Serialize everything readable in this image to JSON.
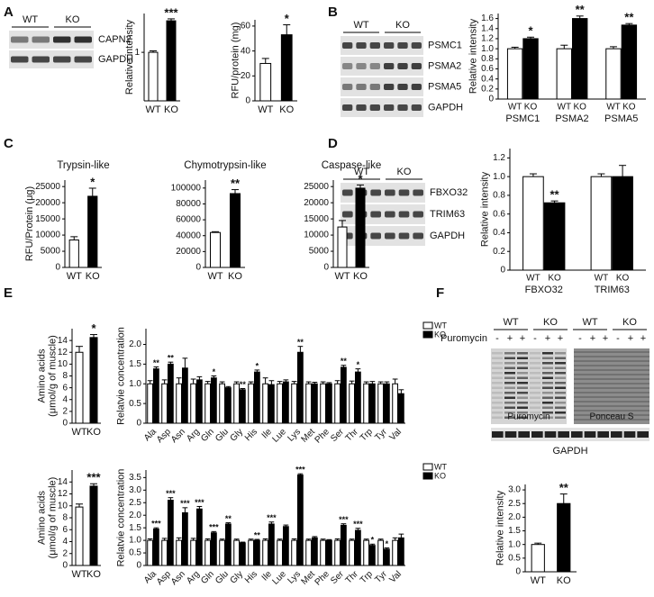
{
  "panel_labels": [
    "A",
    "B",
    "C",
    "D",
    "E",
    "F"
  ],
  "blots": {
    "A": {
      "groups": [
        "WT",
        "KO"
      ],
      "rows": [
        "CAPN2",
        "GAPDH"
      ]
    },
    "B": {
      "groups": [
        "WT",
        "KO"
      ],
      "rows": [
        "PSMC1",
        "PSMA2",
        "PSMA5",
        "GAPDH"
      ]
    },
    "D": {
      "groups": [
        "WT",
        "KO"
      ],
      "rows": [
        "FBXO32",
        "TRIM63",
        "GAPDH"
      ]
    },
    "F": {
      "groups": [
        "WT",
        "KO",
        "WT",
        "KO"
      ],
      "treatment": "Puromycin",
      "lanes": [
        "-",
        "+",
        "+",
        "-",
        "+",
        "+",
        "-",
        "+",
        "+",
        "-",
        "+",
        "+"
      ],
      "stains": [
        "Puromycin",
        "Ponceau S"
      ],
      "loading": "GAPDH"
    }
  },
  "chart_data": [
    {
      "type": "bar",
      "ylabel": "Relative intensity",
      "categories": [
        "WT",
        "KO"
      ],
      "series": [
        {
          "colors": [
            "#ffffff",
            "#000000"
          ],
          "values": [
            1,
            1.65
          ],
          "errors": [
            0.03,
            0.04
          ],
          "annotations": [
            null,
            "***"
          ]
        }
      ],
      "ylim": [
        0,
        1.8
      ],
      "yticks": [
        1
      ]
    },
    {
      "type": "bar",
      "ylabel": "RFU/protein (mg)",
      "categories": [
        "WT",
        "KO"
      ],
      "series": [
        {
          "colors": [
            "#ffffff",
            "#000000"
          ],
          "values": [
            30,
            53
          ],
          "errors": [
            4,
            8
          ],
          "annotations": [
            null,
            "*"
          ]
        }
      ],
      "ylim": [
        0,
        65
      ],
      "yticks": [
        0,
        20,
        40,
        60
      ]
    },
    {
      "type": "bar",
      "ylabel": "Relative intensity",
      "categories": [
        "PSMC1",
        "PSMA2",
        "PSMA5"
      ],
      "bar_labels": true,
      "series": [
        {
          "name": "WT",
          "color": "#ffffff",
          "values": [
            1,
            1,
            1
          ],
          "errors": [
            0.03,
            0.07,
            0.04
          ]
        },
        {
          "name": "KO",
          "color": "#000000",
          "values": [
            1.2,
            1.6,
            1.47
          ],
          "errors": [
            0.03,
            0.05,
            0.03
          ],
          "annotations": [
            "*",
            "**",
            "**"
          ]
        }
      ],
      "ylim": [
        0,
        1.7
      ],
      "yticks": [
        0,
        0.2,
        0.4,
        0.6,
        0.8,
        {
          "value": 1,
          "label": "1.0"
        },
        1.2,
        1.4,
        1.6
      ]
    },
    {
      "type": "bar",
      "title": "Trypsin-like",
      "ylabel": "RFU/Protein (μg)",
      "categories": [
        "WT",
        "KO"
      ],
      "series": [
        {
          "colors": [
            "#ffffff",
            "#000000"
          ],
          "values": [
            8500,
            22000
          ],
          "errors": [
            1000,
            2500
          ],
          "annotations": [
            null,
            "*"
          ]
        }
      ],
      "ylim": [
        0,
        27000
      ],
      "yticks": [
        0,
        5000,
        10000,
        15000,
        20000,
        25000
      ]
    },
    {
      "type": "bar",
      "title": "Chymotrypsin-like",
      "categories": [
        "WT",
        "KO"
      ],
      "series": [
        {
          "colors": [
            "#ffffff",
            "#000000"
          ],
          "values": [
            44000,
            93000
          ],
          "errors": [
            1000,
            5000
          ],
          "annotations": [
            null,
            "**"
          ]
        }
      ],
      "ylim": [
        0,
        110000
      ],
      "yticks": [
        0,
        20000,
        40000,
        60000,
        80000,
        100000
      ]
    },
    {
      "type": "bar",
      "title": "Caspase-like",
      "categories": [
        "WT",
        "KO"
      ],
      "series": [
        {
          "colors": [
            "#ffffff",
            "#000000"
          ],
          "values": [
            12500,
            24500
          ],
          "errors": [
            2000,
            1000
          ],
          "annotations": [
            null,
            "*"
          ]
        }
      ],
      "ylim": [
        0,
        27000
      ],
      "yticks": [
        0,
        5000,
        10000,
        15000,
        20000,
        25000
      ]
    },
    {
      "type": "bar",
      "ylabel": "Relative intensity",
      "categories": [
        "FBXO32",
        "TRIM63"
      ],
      "bar_labels": true,
      "series": [
        {
          "name": "WT",
          "color": "#ffffff",
          "values": [
            1,
            1
          ],
          "errors": [
            0.03,
            0.03
          ]
        },
        {
          "name": "KO",
          "color": "#000000",
          "values": [
            0.72,
            1.0
          ],
          "errors": [
            0.02,
            0.12
          ],
          "annotations": [
            "**",
            null
          ]
        }
      ],
      "ylim": [
        0,
        1.3
      ],
      "yticks": [
        0,
        0.2,
        0.4,
        0.6,
        0.8,
        {
          "value": 1,
          "label": "1.0"
        },
        1.2
      ]
    },
    {
      "type": "bar",
      "ylabel": [
        "Amino acids",
        "(μmol/g of muscle)"
      ],
      "categories": [
        "WT",
        "KO"
      ],
      "series": [
        {
          "colors": [
            "#ffffff",
            "#000000"
          ],
          "values": [
            12,
            14.5
          ],
          "errors": [
            1,
            0.5
          ],
          "annotations": [
            null,
            "*"
          ]
        }
      ],
      "ylim": [
        0,
        16
      ],
      "yticks": [
        0,
        2,
        4,
        6,
        8,
        10,
        12,
        14
      ]
    },
    {
      "type": "bar",
      "ylabel": "Relatvie concentration",
      "legend": true,
      "rotate_labels": true,
      "categories": [
        "Ala",
        "Asp",
        "Asn",
        "Arg",
        "Gln",
        "Glu",
        "Gly",
        "His",
        "Ile",
        "Lue",
        "Lys",
        "Met",
        "Phe",
        "Ser",
        "Thr",
        "Trp",
        "Tyr",
        "Val"
      ],
      "series": [
        {
          "name": "WT",
          "color": "#ffffff",
          "values": [
            1,
            1,
            1,
            1,
            1,
            1,
            1,
            1,
            1,
            1,
            1,
            1,
            1,
            1,
            1,
            1,
            1,
            1
          ],
          "errors": [
            0.08,
            0.1,
            0.15,
            0.12,
            0.06,
            0.05,
            0.05,
            0.05,
            0.15,
            0.06,
            0.06,
            0.05,
            0.05,
            0.08,
            0.07,
            0.05,
            0.05,
            0.12
          ]
        },
        {
          "name": "KO",
          "color": "#000000",
          "values": [
            1.38,
            1.5,
            1.4,
            1.1,
            1.15,
            0.9,
            0.85,
            1.3,
            0.98,
            1.05,
            1.8,
            1.0,
            1.0,
            1.42,
            1.3,
            1.0,
            1.0,
            0.75
          ],
          "errors": [
            0.05,
            0.05,
            0.25,
            0.08,
            0.05,
            0.03,
            0.03,
            0.05,
            0.1,
            0.05,
            0.15,
            0.04,
            0.03,
            0.05,
            0.08,
            0.06,
            0.05,
            0.1
          ],
          "annotations": [
            "**",
            "**",
            null,
            null,
            "*",
            null,
            "**",
            "*",
            null,
            null,
            "**",
            null,
            null,
            "**",
            "*",
            null,
            null,
            null
          ]
        }
      ],
      "ylim": [
        0,
        2.4
      ],
      "yticks": [
        0,
        0.5,
        {
          "value": 1,
          "label": "1.0"
        },
        1.5,
        {
          "value": 2,
          "label": "2.0"
        }
      ]
    },
    {
      "type": "bar",
      "ylabel": [
        "Amino acids",
        "(μmol/g of muscle)"
      ],
      "categories": [
        "WT",
        "KO"
      ],
      "series": [
        {
          "colors": [
            "#ffffff",
            "#000000"
          ],
          "values": [
            9.8,
            13.3
          ],
          "errors": [
            0.5,
            0.4
          ],
          "annotations": [
            null,
            "***"
          ]
        }
      ],
      "ylim": [
        0,
        16
      ],
      "yticks": [
        0,
        2,
        4,
        6,
        8,
        10,
        12,
        14
      ]
    },
    {
      "type": "bar",
      "ylabel": "Relatvie concentration",
      "legend": true,
      "rotate_labels": true,
      "categories": [
        "Ala",
        "Asp",
        "Asn",
        "Arg",
        "Gln",
        "Glu",
        "Gly",
        "His",
        "Ile",
        "Lue",
        "Lys",
        "Met",
        "Phe",
        "Ser",
        "Thr",
        "Trp",
        "Tyr",
        "Val"
      ],
      "series": [
        {
          "name": "WT",
          "color": "#ffffff",
          "values": [
            1,
            1,
            1,
            1,
            1,
            1,
            1,
            1,
            1,
            1,
            1,
            1,
            1,
            1,
            1,
            1,
            1,
            1
          ],
          "errors": [
            0.06,
            0.08,
            0.1,
            0.08,
            0.06,
            0.05,
            0.05,
            0.05,
            0.06,
            0.05,
            0.06,
            0.05,
            0.05,
            0.06,
            0.05,
            0.05,
            0.05,
            0.1
          ]
        },
        {
          "name": "KO",
          "color": "#000000",
          "values": [
            1.45,
            2.6,
            2.1,
            2.25,
            1.3,
            1.65,
            0.9,
            1.0,
            1.65,
            1.55,
            3.6,
            1.1,
            1.0,
            1.6,
            1.4,
            0.8,
            0.65,
            1.1
          ],
          "errors": [
            0.05,
            0.1,
            0.2,
            0.1,
            0.05,
            0.05,
            0.03,
            0.04,
            0.08,
            0.06,
            0.05,
            0.05,
            0.03,
            0.06,
            0.08,
            0.05,
            0.05,
            0.15
          ],
          "annotations": [
            "***",
            "***",
            "***",
            "***",
            "***",
            "**",
            null,
            "**",
            "***",
            null,
            "***",
            null,
            null,
            "***",
            "***",
            "*",
            "*",
            null
          ]
        }
      ],
      "ylim": [
        0,
        3.8
      ],
      "yticks": [
        0,
        0.5,
        {
          "value": 1,
          "label": "1.0"
        },
        1.5,
        {
          "value": 2,
          "label": "2.0"
        },
        2.5,
        {
          "value": 3,
          "label": "3.0"
        },
        3.5
      ]
    },
    {
      "type": "bar",
      "ylabel": "Relative intensity",
      "categories": [
        "WT",
        "KO"
      ],
      "series": [
        {
          "colors": [
            "#ffffff",
            "#000000"
          ],
          "values": [
            1,
            2.5
          ],
          "errors": [
            0.05,
            0.35
          ],
          "annotations": [
            null,
            "**"
          ]
        }
      ],
      "ylim": [
        0,
        3.2
      ],
      "yticks": [
        0,
        0.5,
        {
          "value": 1,
          "label": "1.0"
        },
        1.5,
        {
          "value": 2,
          "label": "2.0"
        },
        2.5,
        {
          "value": 3,
          "label": "3.0"
        }
      ]
    }
  ]
}
